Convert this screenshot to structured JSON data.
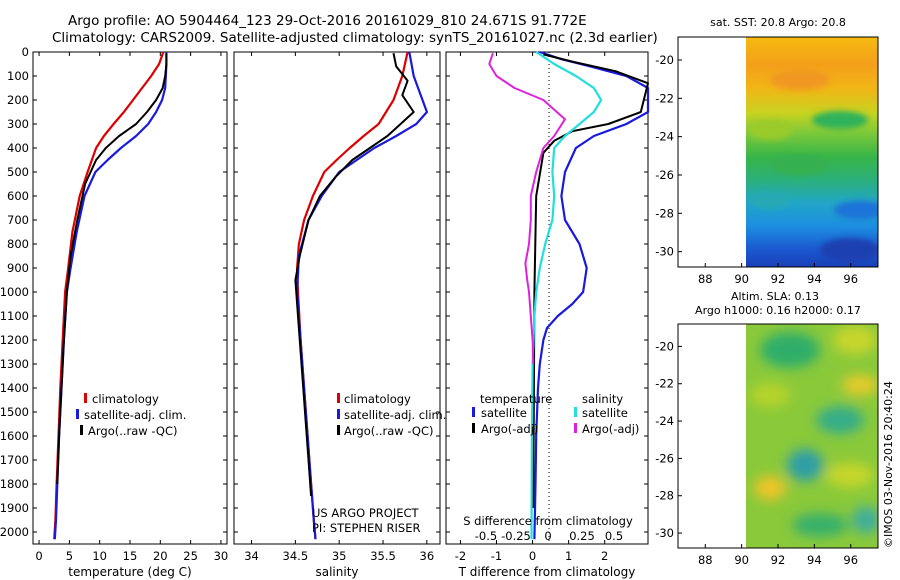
{
  "header": {
    "line1": "Argo profile: AO 5904464_123 29-Oct-2016 20161029_810 24.671S 91.772E",
    "line2": "Climatology: CARS2009. Satellite-adjusted climatology: synTS_20161027.nc (2.3d earlier)"
  },
  "colors": {
    "climatology": "#dd0000",
    "satellite": "#1a1adc",
    "argo": "#000000",
    "sal_satellite": "#22dede",
    "sal_argo": "#dd22dd"
  },
  "chart_data": [
    {
      "type": "line",
      "name": "temperature-profile",
      "xlabel": "temperature (deg C)",
      "ylabel": "",
      "xlim": [
        -1,
        31
      ],
      "ylim": [
        2050,
        0
      ],
      "xticks": [
        0,
        5,
        10,
        15,
        20,
        25,
        30
      ],
      "yticks": [
        0,
        100,
        200,
        300,
        400,
        500,
        600,
        700,
        800,
        900,
        1000,
        1100,
        1200,
        1300,
        1400,
        1500,
        1600,
        1700,
        1800,
        1900,
        2000
      ],
      "legend": [
        "climatology",
        "satellite-adj. clim.",
        "Argo(..raw -QC)"
      ],
      "series": [
        {
          "name": "climatology",
          "x": [
            20.5,
            19.8,
            18.5,
            17.0,
            15.5,
            14.0,
            12.3,
            10.7,
            9.4,
            8.0,
            6.7,
            5.5,
            4.8,
            4.3,
            3.9,
            3.5,
            3.2,
            2.9,
            2.7,
            2.5
          ],
          "y": [
            0,
            50,
            100,
            150,
            200,
            250,
            300,
            350,
            400,
            500,
            600,
            750,
            900,
            1000,
            1200,
            1400,
            1600,
            1800,
            1950,
            2030
          ]
        },
        {
          "name": "satellite-adj. clim.",
          "x": [
            21.0,
            21.0,
            20.9,
            20.8,
            20.3,
            19.3,
            18.0,
            16.0,
            13.5,
            11.3,
            9.3,
            7.5,
            6.2,
            5.2,
            4.6,
            4.1,
            3.7,
            3.3,
            3.0,
            2.8,
            2.6
          ],
          "y": [
            0,
            50,
            100,
            150,
            200,
            250,
            300,
            350,
            400,
            450,
            500,
            600,
            750,
            900,
            1000,
            1200,
            1400,
            1600,
            1800,
            1950,
            2030
          ]
        },
        {
          "name": "Argo",
          "x": [
            21.0,
            21.0,
            20.8,
            20.4,
            19.3,
            17.8,
            16.0,
            13.2,
            11.0,
            9.4,
            7.6,
            6.3,
            5.2,
            4.6,
            4.1,
            3.7,
            3.3,
            3.0
          ],
          "y": [
            5,
            50,
            100,
            150,
            200,
            250,
            300,
            350,
            400,
            450,
            550,
            700,
            850,
            1000,
            1200,
            1400,
            1600,
            1800
          ]
        }
      ]
    },
    {
      "type": "line",
      "name": "salinity-profile",
      "xlabel": "salinity",
      "xlim": [
        33.8,
        36.15
      ],
      "ylim": [
        2050,
        0
      ],
      "xticks": [
        34,
        34.5,
        35,
        35.5,
        36
      ],
      "legend": [
        "climatology",
        "satellite-adj. clim.",
        "Argo(..raw -QC)"
      ],
      "annotation": [
        "US ARGO PROJECT",
        "PI: STEPHEN RISER"
      ],
      "series": [
        {
          "name": "climatology",
          "x": [
            35.78,
            35.72,
            35.62,
            35.45,
            35.28,
            35.12,
            34.97,
            34.83,
            34.7,
            34.6,
            34.54,
            34.52,
            34.53,
            34.56,
            34.6,
            34.64,
            34.68,
            34.71,
            34.73
          ],
          "y": [
            0,
            100,
            200,
            300,
            350,
            400,
            450,
            500,
            600,
            700,
            800,
            900,
            1000,
            1200,
            1400,
            1600,
            1800,
            1950,
            2030
          ]
        },
        {
          "name": "satellite-adj. clim.",
          "x": [
            35.8,
            35.85,
            35.95,
            36.0,
            35.88,
            35.65,
            35.4,
            35.2,
            35.0,
            34.8,
            34.65,
            34.54,
            34.52,
            34.56,
            34.6,
            34.64,
            34.68,
            34.71,
            34.73
          ],
          "y": [
            0,
            100,
            200,
            250,
            300,
            350,
            400,
            450,
            500,
            600,
            700,
            850,
            1000,
            1200,
            1400,
            1600,
            1800,
            1950,
            2030
          ]
        },
        {
          "name": "Argo",
          "x": [
            35.62,
            35.65,
            35.78,
            35.72,
            35.85,
            35.7,
            35.55,
            35.35,
            35.15,
            34.96,
            34.78,
            34.65,
            34.55,
            34.5,
            34.53,
            34.57,
            34.61,
            34.65,
            34.68
          ],
          "y": [
            5,
            60,
            120,
            180,
            250,
            300,
            350,
            400,
            450,
            520,
            600,
            700,
            850,
            950,
            1100,
            1300,
            1500,
            1700,
            1850
          ]
        }
      ]
    },
    {
      "type": "line",
      "name": "difference-profile",
      "xlabel": "T difference from climatology",
      "xlabel_top": "S difference from climatology",
      "xlim": [
        -2.4,
        3.2
      ],
      "ylim": [
        2050,
        0
      ],
      "xticks": [
        -2,
        -1,
        0,
        1,
        2
      ],
      "top_ticks": [
        "-0.5",
        "-0.25",
        "0",
        "0.25",
        "0.5"
      ],
      "legend_headers": [
        "temperature",
        "salinity"
      ],
      "legend": [
        "satellite",
        "Argo(-adj)",
        "satellite",
        "Argo(-adj)"
      ],
      "series": [
        {
          "name": "temperature satellite",
          "x": [
            0.2,
            0.8,
            1.6,
            2.6,
            3.2,
            3.2,
            2.6,
            1.7,
            1.2,
            0.9,
            0.8,
            0.9,
            1.3,
            1.5,
            1.4,
            1.1,
            0.7,
            0.4,
            0.3,
            0.2,
            0.15,
            0.1,
            0.08,
            0.05
          ],
          "y": [
            0,
            30,
            60,
            100,
            150,
            250,
            300,
            350,
            400,
            500,
            600,
            700,
            800,
            900,
            1000,
            1050,
            1100,
            1150,
            1200,
            1300,
            1400,
            1600,
            1800,
            2030
          ]
        },
        {
          "name": "temperature Argo",
          "x": [
            0.3,
            1.1,
            2.3,
            3.2,
            3.0,
            2.1,
            1.1,
            0.6,
            0.3,
            0.1,
            0.05,
            0.02
          ],
          "y": [
            10,
            40,
            80,
            130,
            250,
            300,
            330,
            370,
            420,
            600,
            1000,
            1900
          ]
        },
        {
          "name": "salinity satellite",
          "x": [
            0.1,
            0.6,
            1.2,
            1.7,
            1.9,
            1.7,
            1.3,
            0.9,
            0.6,
            0.55,
            0.6,
            0.55,
            0.35,
            0.2,
            0.1,
            0.05,
            0.0,
            -0.02,
            -0.03
          ],
          "y": [
            0,
            50,
            100,
            150,
            200,
            250,
            300,
            350,
            400,
            500,
            600,
            700,
            800,
            900,
            1000,
            1100,
            1300,
            1600,
            2030
          ]
        },
        {
          "name": "salinity Argo",
          "x": [
            -1.1,
            -1.2,
            -1.0,
            -0.5,
            0.3,
            0.9,
            0.6,
            0.3,
            0.1,
            -0.05,
            -0.05,
            -0.1,
            -0.2,
            -0.15,
            -0.1,
            -0.05,
            0.0,
            0.02
          ],
          "y": [
            5,
            50,
            100,
            150,
            200,
            280,
            350,
            400,
            500,
            600,
            700,
            800,
            880,
            950,
            1000,
            1100,
            1200,
            1300
          ]
        }
      ]
    },
    {
      "type": "heatmap",
      "name": "sst-map",
      "title": "sat. SST: 20.8  Argo: 20.8",
      "xticks": [
        88,
        90,
        92,
        94,
        96
      ],
      "yticks": [
        -20,
        -22,
        -24,
        -26,
        -28,
        -30
      ],
      "xlim": [
        86.5,
        97.5
      ],
      "ylim": [
        -30.8,
        -18.8
      ]
    },
    {
      "type": "heatmap",
      "name": "sla-map",
      "title_line1": "Altim. SLA: 0.13",
      "title_line2": "Argo h1000: 0.16  h2000: 0.17",
      "xticks": [
        88,
        90,
        92,
        94,
        96
      ],
      "yticks": [
        -20,
        -22,
        -24,
        -26,
        -28,
        -30
      ],
      "xlim": [
        86.5,
        97.5
      ],
      "ylim": [
        -30.8,
        -18.8
      ]
    }
  ],
  "footer": {
    "credit": "©IMOS 03-Nov-2016 20:40:24"
  }
}
